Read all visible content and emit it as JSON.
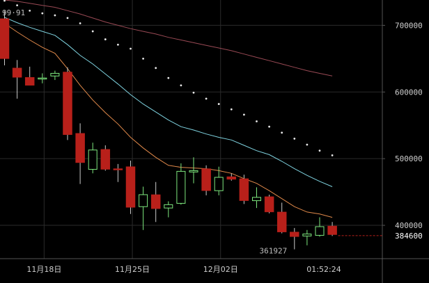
{
  "chart_data": {
    "type": "candlestick",
    "ylim": [
      350000,
      738000
    ],
    "y_ticks": [
      {
        "value": 700000,
        "label": "700000"
      },
      {
        "value": 600000,
        "label": "600000"
      },
      {
        "value": 500000,
        "label": "500000"
      },
      {
        "value": 400000,
        "label": "400000"
      }
    ],
    "x_ticks": [
      {
        "index": 3.5,
        "label": "11月18日"
      },
      {
        "index": 10.5,
        "label": "11月25日"
      },
      {
        "index": 17.5,
        "label": "12月02日"
      }
    ],
    "time_label": "01:52:24",
    "current_price": {
      "value": 384600,
      "label": "384600"
    },
    "low_annotation": {
      "value": 361927,
      "label": "361927"
    },
    "top_left_label": "99·91",
    "colors": {
      "up": "#7ee87e",
      "down": "#b8201a",
      "wick": "#cccccc",
      "ma_short": "#7fd3e0",
      "ma_mid": "#e0894a",
      "ma_long": "#9a4a55",
      "sar": "#e8e8e8",
      "current_price": "#b8201a",
      "grid": "#2b2b2b",
      "axis": "#555555"
    },
    "candles": [
      {
        "o": 710000,
        "h": 722000,
        "l": 640000,
        "c": 650000
      },
      {
        "o": 636000,
        "h": 648000,
        "l": 590000,
        "c": 622000
      },
      {
        "o": 622000,
        "h": 638000,
        "l": 612000,
        "c": 610000
      },
      {
        "o": 620000,
        "h": 628000,
        "l": 613000,
        "c": 621000
      },
      {
        "o": 624000,
        "h": 632000,
        "l": 618000,
        "c": 628000
      },
      {
        "o": 630000,
        "h": 637000,
        "l": 528000,
        "c": 536000
      },
      {
        "o": 538000,
        "h": 553000,
        "l": 462000,
        "c": 494000
      },
      {
        "o": 484000,
        "h": 524000,
        "l": 478000,
        "c": 513000
      },
      {
        "o": 514000,
        "h": 520000,
        "l": 482000,
        "c": 484000
      },
      {
        "o": 485000,
        "h": 492000,
        "l": 465000,
        "c": 483000
      },
      {
        "o": 488000,
        "h": 497000,
        "l": 417000,
        "c": 427000
      },
      {
        "o": 428000,
        "h": 458000,
        "l": 393000,
        "c": 446000
      },
      {
        "o": 446000,
        "h": 465000,
        "l": 405000,
        "c": 425000
      },
      {
        "o": 426000,
        "h": 436000,
        "l": 412000,
        "c": 431000
      },
      {
        "o": 433000,
        "h": 493000,
        "l": 431000,
        "c": 481000
      },
      {
        "o": 480000,
        "h": 502000,
        "l": 463000,
        "c": 482000
      },
      {
        "o": 485000,
        "h": 490000,
        "l": 445000,
        "c": 452000
      },
      {
        "o": 452000,
        "h": 488000,
        "l": 445000,
        "c": 472000
      },
      {
        "o": 473000,
        "h": 478000,
        "l": 467000,
        "c": 469000
      },
      {
        "o": 470000,
        "h": 476000,
        "l": 432000,
        "c": 437000
      },
      {
        "o": 437000,
        "h": 457000,
        "l": 426000,
        "c": 442000
      },
      {
        "o": 443000,
        "h": 446000,
        "l": 418000,
        "c": 420000
      },
      {
        "o": 420000,
        "h": 434000,
        "l": 388000,
        "c": 390000
      },
      {
        "o": 390000,
        "h": 396000,
        "l": 364000,
        "c": 383000
      },
      {
        "o": 384000,
        "h": 393000,
        "l": 370000,
        "c": 387000
      },
      {
        "o": 385000,
        "h": 412000,
        "l": 383000,
        "c": 398000
      },
      {
        "o": 399000,
        "h": 405000,
        "l": 384000,
        "c": 386000
      }
    ],
    "ma_short": [
      712000,
      704000,
      697000,
      691000,
      685000,
      671000,
      655000,
      642000,
      627000,
      612000,
      596000,
      582000,
      570000,
      558000,
      548000,
      543000,
      537000,
      532000,
      528000,
      520000,
      512000,
      506000,
      496000,
      485000,
      475000,
      466000,
      458000
    ],
    "ma_mid": [
      703000,
      690000,
      678000,
      667000,
      658000,
      635000,
      610000,
      588000,
      569000,
      552000,
      532000,
      516000,
      502000,
      490000,
      487000,
      486000,
      485000,
      482000,
      478000,
      470000,
      463000,
      452000,
      440000,
      428000,
      420000,
      417000,
      412000
    ],
    "ma_long": [
      738000,
      736000,
      733000,
      730000,
      727000,
      722000,
      717000,
      711000,
      705000,
      700000,
      695000,
      691000,
      687000,
      682000,
      678000,
      674000,
      670000,
      666000,
      662000,
      657000,
      652000,
      647000,
      642000,
      637000,
      632000,
      628000,
      624000
    ],
    "sar": [
      737000,
      730000,
      722000,
      718000,
      715000,
      711000,
      703000,
      691000,
      679000,
      671000,
      665000,
      650000,
      636000,
      621000,
      610000,
      599000,
      590000,
      582000,
      574000,
      566000,
      556000,
      548000,
      539000,
      530000,
      521000,
      512000,
      505000
    ]
  }
}
